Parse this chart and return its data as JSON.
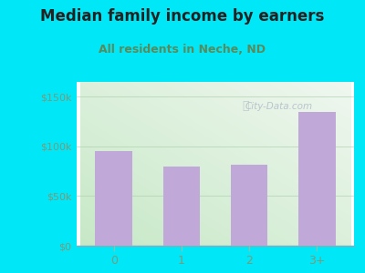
{
  "title": "Median family income by earners",
  "subtitle": "All residents in Neche, ND",
  "categories": [
    "0",
    "1",
    "2",
    "3+"
  ],
  "values": [
    95000,
    80000,
    82000,
    135000
  ],
  "bar_color": "#c0a8d8",
  "bg_color": "#00e8f8",
  "plot_bg_topleft": "#c8e8c8",
  "plot_bg_bottomright": "#f0f8f0",
  "yticks": [
    0,
    50000,
    100000,
    150000
  ],
  "ytick_labels": [
    "$0",
    "$50k",
    "$100k",
    "$150k"
  ],
  "ylim": [
    0,
    165000
  ],
  "title_color": "#222222",
  "subtitle_color": "#5a8a5a",
  "tick_color": "#7a9a7a",
  "title_fontsize": 12,
  "subtitle_fontsize": 9,
  "watermark": "City-Data.com",
  "watermark_color": "#b0bcc8"
}
